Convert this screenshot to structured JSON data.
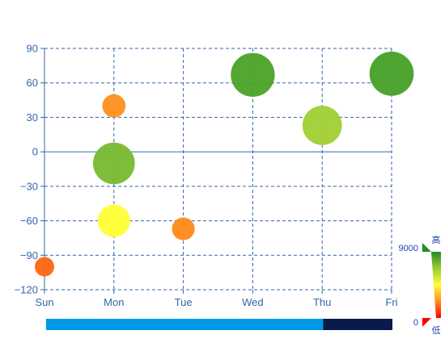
{
  "chart_data": {
    "type": "scatter",
    "title": "",
    "xlabel": "",
    "ylabel": "",
    "categories": [
      "Sun",
      "Mon",
      "Tue",
      "Wed",
      "Thu",
      "Fri"
    ],
    "ylim": [
      -120,
      90
    ],
    "y_ticks": [
      90,
      60,
      30,
      0,
      -30,
      -60,
      -90,
      -120
    ],
    "grid": true,
    "grid_style": "dashed",
    "points": [
      {
        "x": "Sun",
        "y": -100,
        "value": 1600
      },
      {
        "x": "Mon",
        "y": 40,
        "value": 2300
      },
      {
        "x": "Mon",
        "y": -10,
        "value": 7400
      },
      {
        "x": "Mon",
        "y": -60,
        "value": 4500
      },
      {
        "x": "Tue",
        "y": -67,
        "value": 2200
      },
      {
        "x": "Wed",
        "y": 67,
        "value": 8200
      },
      {
        "x": "Thu",
        "y": 23,
        "value": 6600
      },
      {
        "x": "Fri",
        "y": 68,
        "value": 8300
      }
    ],
    "visual_map": {
      "min": 0,
      "max": 9000,
      "min_label": "0",
      "max_label": "9000",
      "high_text": "高",
      "low_text": "低",
      "colors": [
        "#ff0000",
        "#ff8c1a",
        "#ffff33",
        "#99cc33",
        "#228b22"
      ]
    },
    "data_zoom": {
      "start": 0,
      "end": 80,
      "fill_color": "#0099e6",
      "track_color": "#0a1a4d"
    },
    "colors": {
      "axis": "#3366aa",
      "axis_label": "#3366aa",
      "grid": "#3366aa"
    }
  }
}
